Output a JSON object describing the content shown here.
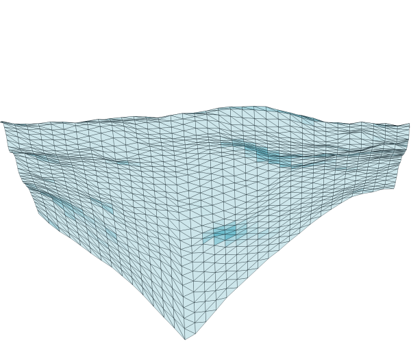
{
  "scene": {
    "background_color": "#ffffff",
    "surface_base_color": "#5fb6c8",
    "surface_light_color": "#e9f2f4",
    "surface_dark_color": "#2b8aa2",
    "wireframe_color": "#0a1a20",
    "wireframe_visible": true,
    "render_style": "shaded-mesh-with-wireframe"
  }
}
